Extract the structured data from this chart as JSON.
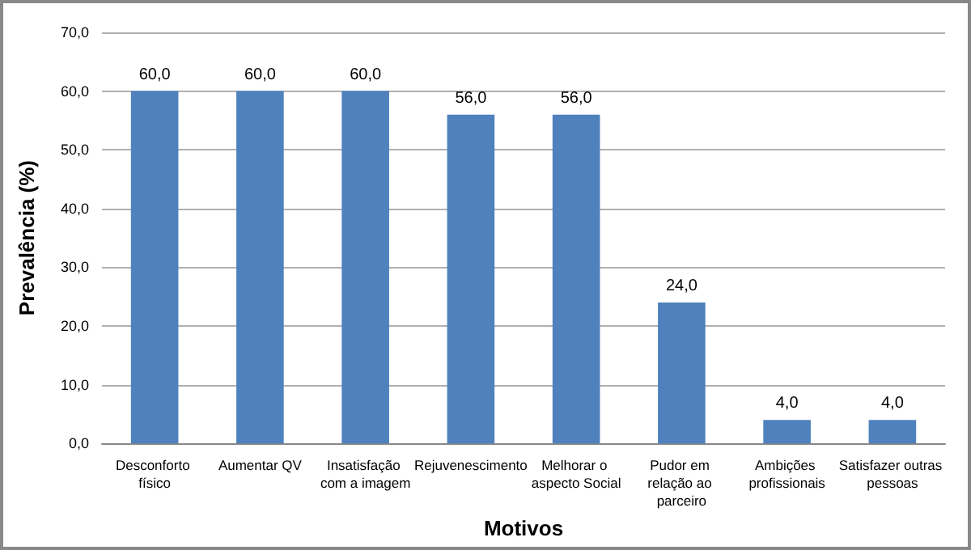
{
  "chart_data": {
    "type": "bar",
    "xlabel": "Motivos",
    "ylabel": "Prevalência (%)",
    "categories": [
      "Desconforto físico",
      "Aumentar QV",
      "Insatisfação com a imagem",
      "Rejuvenescimento",
      "Melhorar o aspecto Social",
      "Pudor em relação ao parceiro",
      "Ambições profissionais",
      "Satisfazer outras pessoas"
    ],
    "values": [
      60,
      60,
      60,
      56,
      56,
      24,
      4,
      4
    ],
    "value_labels": [
      "60,0",
      "60,0",
      "60,0",
      "56,0",
      "56,0",
      "24,0",
      "4,0",
      "4,0"
    ],
    "color": "#4f81bd",
    "ylim": [
      0,
      70
    ],
    "yticks": [
      {
        "value": 0,
        "label": "0,0"
      },
      {
        "value": 10,
        "label": "10,0"
      },
      {
        "value": 20,
        "label": "20,0"
      },
      {
        "value": 30,
        "label": "30,0"
      },
      {
        "value": 40,
        "label": "40,0"
      },
      {
        "value": 50,
        "label": "50,0"
      },
      {
        "value": 60,
        "label": "60,0"
      },
      {
        "value": 70,
        "label": "70,0"
      }
    ],
    "grid": "y"
  }
}
